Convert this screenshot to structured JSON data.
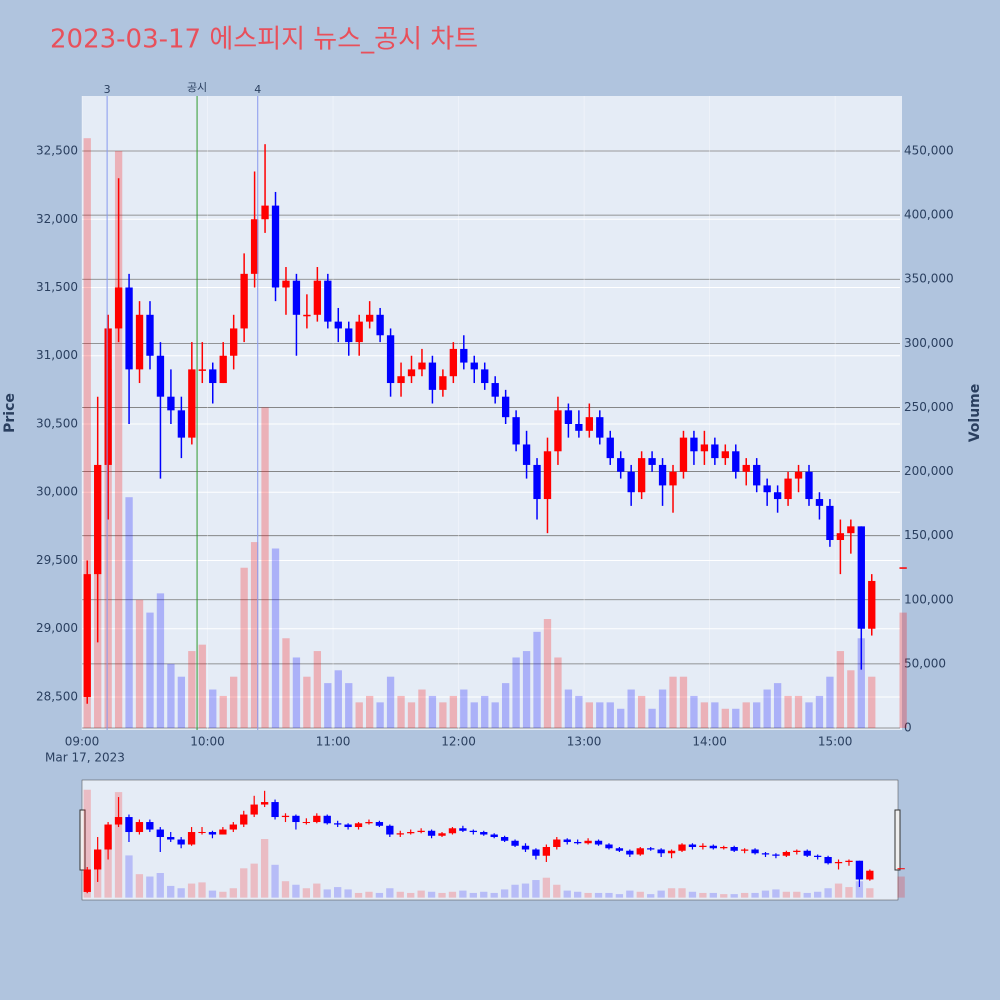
{
  "chart_data": {
    "type": "candlestick",
    "title": "2023-03-17 에스피지 뉴스_공시 차트",
    "x": [
      "09:00",
      "09:05",
      "09:10",
      "09:15",
      "09:20",
      "09:25",
      "09:30",
      "09:35",
      "09:40",
      "09:45",
      "09:50",
      "09:55",
      "10:00",
      "10:05",
      "10:10",
      "10:15",
      "10:20",
      "10:25",
      "10:30",
      "10:35",
      "10:40",
      "10:45",
      "10:50",
      "10:55",
      "11:00",
      "11:05",
      "11:10",
      "11:15",
      "11:20",
      "11:25",
      "11:30",
      "11:35",
      "11:40",
      "11:45",
      "11:50",
      "11:55",
      "12:00",
      "12:05",
      "12:10",
      "12:15",
      "12:20",
      "12:25",
      "12:30",
      "12:35",
      "12:40",
      "12:45",
      "12:50",
      "12:55",
      "13:00",
      "13:05",
      "13:10",
      "13:15",
      "13:20",
      "13:25",
      "13:30",
      "13:35",
      "13:40",
      "13:45",
      "13:50",
      "13:55",
      "14:00",
      "14:05",
      "14:10",
      "14:15",
      "14:20",
      "14:25",
      "14:30",
      "14:35",
      "14:40",
      "14:45",
      "14:50",
      "14:55",
      "15:00",
      "15:05",
      "15:10",
      "15:15",
      "15:30"
    ],
    "open": [
      28500,
      29400,
      30200,
      31200,
      31500,
      30900,
      31300,
      31000,
      30700,
      30600,
      30400,
      30900,
      30900,
      30800,
      31000,
      31200,
      31600,
      32000,
      32100,
      31500,
      31550,
      31300,
      31300,
      31550,
      31250,
      31200,
      31100,
      31250,
      31300,
      31150,
      30800,
      30850,
      30900,
      30950,
      30750,
      30850,
      31050,
      30950,
      30900,
      30800,
      30700,
      30550,
      30350,
      30200,
      29950,
      30300,
      30600,
      30500,
      30450,
      30550,
      30400,
      30250,
      30150,
      30000,
      30250,
      30200,
      30050,
      30150,
      30400,
      30300,
      30350,
      30250,
      30300,
      30150,
      30200,
      30050,
      30000,
      29950,
      30100,
      30150,
      29950,
      29900,
      29650,
      29700,
      29750,
      29000,
      29450
    ],
    "high": [
      29500,
      30700,
      31300,
      32300,
      31600,
      31400,
      31400,
      31100,
      30900,
      30700,
      31100,
      31100,
      30950,
      31100,
      31300,
      31750,
      32350,
      32550,
      32200,
      31650,
      31600,
      31450,
      31650,
      31600,
      31350,
      31250,
      31300,
      31400,
      31350,
      31200,
      30950,
      31000,
      31050,
      31000,
      30900,
      31100,
      31150,
      31000,
      30950,
      30850,
      30750,
      30600,
      30450,
      30250,
      30400,
      30700,
      30650,
      30600,
      30650,
      30600,
      30450,
      30300,
      30200,
      30300,
      30300,
      30250,
      30200,
      30450,
      30450,
      30450,
      30400,
      30350,
      30350,
      30250,
      30250,
      30100,
      30050,
      30150,
      30200,
      30200,
      30000,
      29950,
      29800,
      29800,
      29750,
      29400,
      29450
    ],
    "low": [
      28450,
      28900,
      29800,
      31100,
      30500,
      30800,
      30900,
      30100,
      30500,
      30250,
      30350,
      30800,
      30650,
      30800,
      30900,
      31100,
      31500,
      31900,
      31400,
      31300,
      31000,
      31200,
      31250,
      31200,
      31100,
      31000,
      31000,
      31200,
      31100,
      30700,
      30700,
      30800,
      30850,
      30650,
      30700,
      30800,
      30900,
      30800,
      30750,
      30650,
      30500,
      30300,
      30100,
      29800,
      29700,
      30200,
      30400,
      30400,
      30400,
      30350,
      30200,
      30100,
      29900,
      29950,
      30150,
      29900,
      29850,
      30100,
      30200,
      30200,
      30200,
      30200,
      30100,
      30050,
      30000,
      29900,
      29850,
      29900,
      30000,
      29900,
      29800,
      29600,
      29400,
      29550,
      28700,
      28950,
      29450
    ],
    "close": [
      29400,
      30200,
      31200,
      31500,
      30900,
      31300,
      31000,
      30700,
      30600,
      30400,
      30900,
      30900,
      30800,
      31000,
      31200,
      31600,
      32000,
      32100,
      31500,
      31550,
      31300,
      31300,
      31550,
      31250,
      31200,
      31100,
      31250,
      31300,
      31150,
      30800,
      30850,
      30900,
      30950,
      30750,
      30850,
      31050,
      30950,
      30900,
      30800,
      30700,
      30550,
      30350,
      30200,
      29950,
      30300,
      30600,
      30500,
      30450,
      30550,
      30400,
      30250,
      30150,
      30000,
      30250,
      30200,
      30050,
      30150,
      30400,
      30300,
      30350,
      30250,
      30300,
      30150,
      30200,
      30050,
      30000,
      29950,
      30100,
      30150,
      29950,
      29900,
      29650,
      29700,
      29750,
      29000,
      29350,
      29450
    ],
    "volume": [
      460000,
      200000,
      280000,
      450000,
      180000,
      100000,
      90000,
      105000,
      50000,
      40000,
      60000,
      65000,
      30000,
      25000,
      40000,
      125000,
      145000,
      250000,
      140000,
      70000,
      55000,
      40000,
      60000,
      35000,
      45000,
      35000,
      20000,
      25000,
      20000,
      40000,
      25000,
      20000,
      30000,
      25000,
      20000,
      25000,
      30000,
      20000,
      25000,
      20000,
      35000,
      55000,
      60000,
      75000,
      85000,
      55000,
      30000,
      25000,
      20000,
      20000,
      20000,
      15000,
      30000,
      25000,
      15000,
      30000,
      40000,
      40000,
      25000,
      20000,
      20000,
      15000,
      15000,
      20000,
      20000,
      30000,
      35000,
      25000,
      25000,
      20000,
      25000,
      40000,
      60000,
      45000,
      70000,
      40000,
      90000
    ],
    "up_color": "#ff0000",
    "down_color": "#0000ff",
    "xlim": [
      "09:00",
      "15:31"
    ],
    "xticks": [
      "09:00",
      "10:00",
      "11:00",
      "12:00",
      "13:00",
      "14:00",
      "15:00"
    ],
    "x_date_label": "Mar 17, 2023",
    "ylim": [
      28258,
      32903
    ],
    "yticks": [
      {
        "value": 28500,
        "label": "28,500"
      },
      {
        "value": 29000,
        "label": "29,000"
      },
      {
        "value": 29500,
        "label": "29,500"
      },
      {
        "value": 30000,
        "label": "30,000"
      },
      {
        "value": 30500,
        "label": "30,500"
      },
      {
        "value": 31000,
        "label": "31,000"
      },
      {
        "value": 31500,
        "label": "31,500"
      },
      {
        "value": 32000,
        "label": "32,000"
      },
      {
        "value": 32500,
        "label": "32,500"
      }
    ],
    "y2lim": [
      -1560,
      492900
    ],
    "y2ticks": [
      0,
      {
        "value": 50000,
        "label": "50,000"
      },
      {
        "value": 100000,
        "label": "100,000"
      },
      {
        "value": 150000,
        "label": "150,000"
      },
      {
        "value": 200000,
        "label": "200,000"
      },
      {
        "value": 250000,
        "label": "250,000"
      },
      {
        "value": 300000,
        "label": "300,000"
      },
      {
        "value": 350000,
        "label": "350,000"
      },
      {
        "value": 400000,
        "label": "400,000"
      },
      {
        "value": 450000,
        "label": "450,000"
      }
    ],
    "y_label": "Price",
    "y2_label": "Volume",
    "annotations": [
      {
        "x": "09:12",
        "text": "3",
        "color": "#8899ee"
      },
      {
        "x": "09:55",
        "text": "공시",
        "color": "#2e9a2e"
      },
      {
        "x": "10:24",
        "text": "4",
        "color": "#8899ee"
      }
    ],
    "grid": true,
    "rangeslider": true
  }
}
